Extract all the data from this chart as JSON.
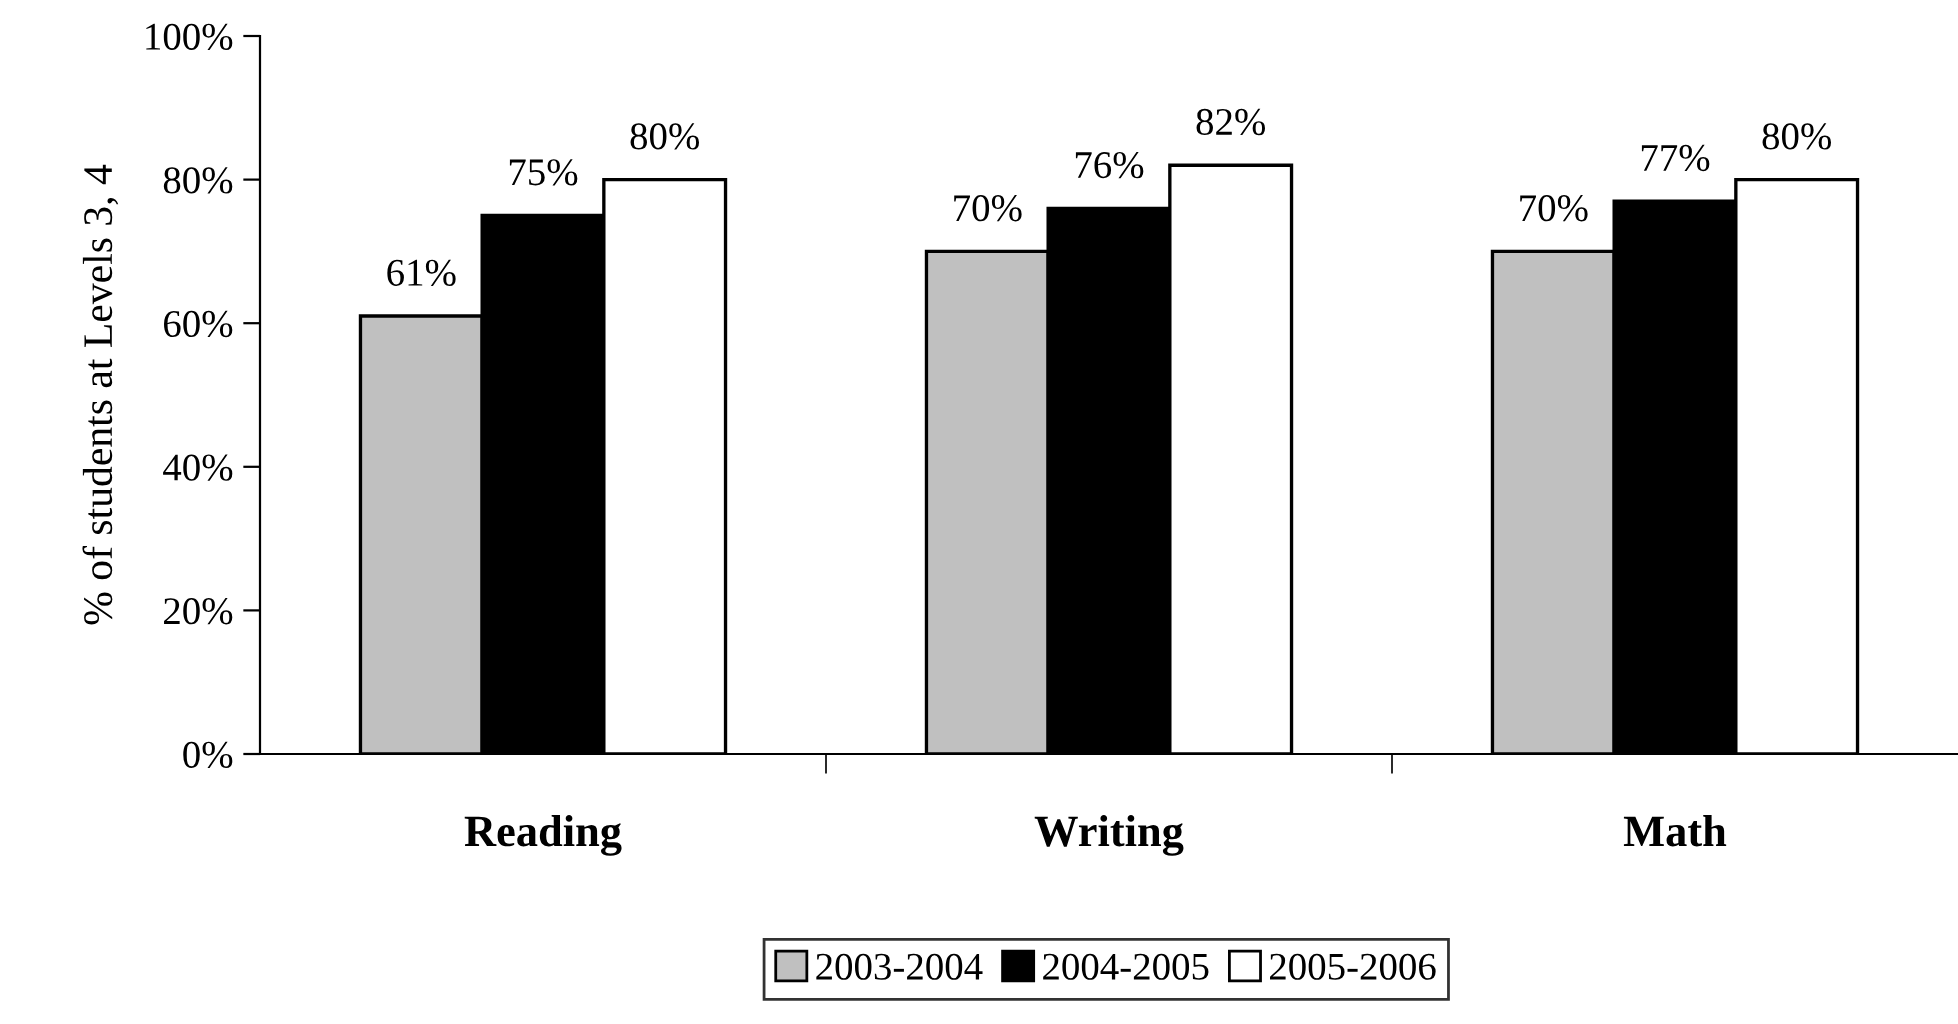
{
  "chart_data": {
    "type": "bar",
    "ylabel": "% of students at Levels 3, 4",
    "categories": [
      "Reading",
      "Writing",
      "Math"
    ],
    "series": [
      {
        "name": "2003-2004",
        "color": "#c0c0c0",
        "values": [
          61,
          70,
          70
        ],
        "value_labels": [
          "61%",
          "70%",
          "70%"
        ]
      },
      {
        "name": "2004-2005",
        "color": "#000000",
        "values": [
          75,
          76,
          77
        ],
        "value_labels": [
          "75%",
          "76%",
          "77%"
        ]
      },
      {
        "name": "2005-2006",
        "color": "#ffffff",
        "values": [
          80,
          82,
          80
        ],
        "value_labels": [
          "80%",
          "82%",
          "80%"
        ]
      }
    ],
    "ylim": [
      0,
      100
    ],
    "yticks": [
      {
        "value": 0,
        "label": "0%"
      },
      {
        "value": 20,
        "label": "20%"
      },
      {
        "value": 40,
        "label": "40%"
      },
      {
        "value": 60,
        "label": "60%"
      },
      {
        "value": 80,
        "label": "80%"
      },
      {
        "value": 100,
        "label": "100%"
      }
    ],
    "legend": "bottom",
    "grid": false
  }
}
